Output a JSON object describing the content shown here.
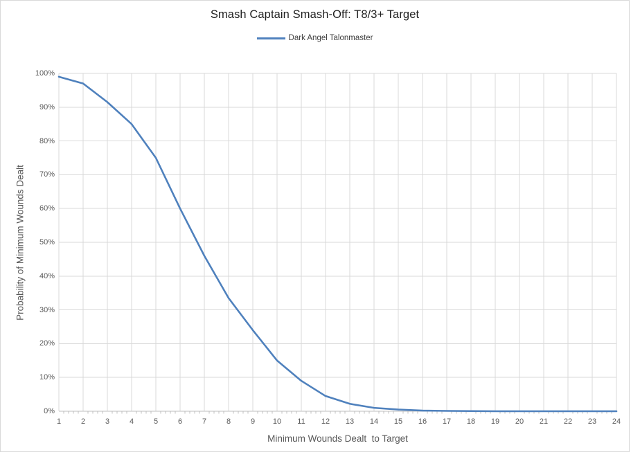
{
  "chart_data": {
    "type": "line",
    "title": "Smash Captain Smash-Off: T8/3+ Target",
    "xlabel": "Minimum Wounds Dealt  to Target",
    "ylabel": "Probability of Minimum Wounds Dealt",
    "x": [
      1,
      2,
      3,
      4,
      5,
      6,
      7,
      8,
      9,
      10,
      11,
      12,
      13,
      14,
      15,
      16,
      17,
      18,
      19,
      20,
      21,
      22,
      23,
      24
    ],
    "xtick_labels": [
      "1",
      "2",
      "3",
      "4",
      "5",
      "6",
      "7",
      "8",
      "9",
      "10",
      "11",
      "12",
      "13",
      "14",
      "15",
      "16",
      "17",
      "18",
      "19",
      "20",
      "21",
      "22",
      "23",
      "24"
    ],
    "ytick_values": [
      0,
      10,
      20,
      30,
      40,
      50,
      60,
      70,
      80,
      90,
      100
    ],
    "ytick_labels": [
      "0%",
      "10%",
      "20%",
      "30%",
      "40%",
      "50%",
      "60%",
      "70%",
      "80%",
      "90%",
      "100%"
    ],
    "ylim": [
      0,
      100
    ],
    "grid": true,
    "legend_position": "top-center",
    "series": [
      {
        "name": "Dark Angel Talonmaster",
        "color": "#4F81BD",
        "values_pct": [
          99,
          97,
          91.5,
          85,
          75,
          60,
          46,
          33.5,
          24,
          15,
          9,
          4.5,
          2.2,
          1,
          0.5,
          0.2,
          0.1,
          0.05,
          0,
          0,
          0,
          0,
          0,
          0
        ]
      }
    ]
  },
  "colors": {
    "background": "#FFFFFF",
    "border": "#D9D9D9",
    "gridline": "#D9D9D9",
    "axis_line": "#BFBFBF",
    "title_text": "#1F1F1F",
    "axis_text": "#595959",
    "legend_text": "#404040"
  }
}
